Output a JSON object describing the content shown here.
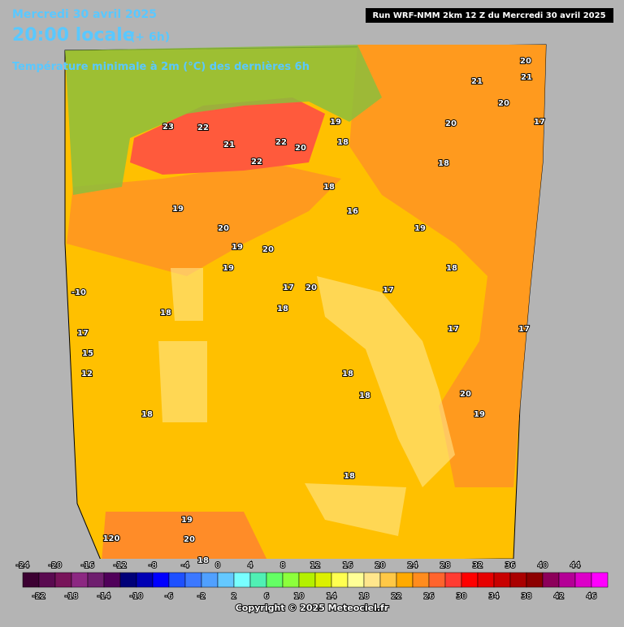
{
  "header": {
    "date": "Mercredi 30 avril 2025",
    "time": "20:00 locale",
    "lead": "(+ 6h)",
    "subtitle": "Température minimale à 2m (°C) des dernières 6h",
    "run": "Run WRF-NMM 2km 12 Z du Mercredi 30 avril 2025"
  },
  "map_labels": [
    23,
    22,
    22,
    22,
    21,
    20,
    19,
    18,
    18,
    16,
    19,
    20,
    19,
    20,
    19,
    17,
    20,
    18,
    17,
    18,
    17,
    15,
    12,
    18,
    18,
    18,
    19,
    20,
    18,
    17,
    17,
    18,
    19,
    18,
    20,
    20,
    21,
    20,
    21,
    17,
    -10,
    19,
    20,
    18,
    120
  ],
  "scale": {
    "top_labels": [
      -24,
      -20,
      -16,
      -12,
      -8,
      -4,
      0,
      4,
      8,
      12,
      16,
      20,
      24,
      28,
      32,
      36,
      40,
      44
    ],
    "bottom_labels": [
      -22,
      -18,
      -14,
      -10,
      -6,
      -2,
      2,
      6,
      10,
      14,
      18,
      22,
      26,
      30,
      34,
      38,
      42,
      46
    ],
    "colors": [
      "#3c0032",
      "#5a0a50",
      "#78145a",
      "#8c2882",
      "#6e1e6e",
      "#50005a",
      "#000078",
      "#0000b4",
      "#0000ff",
      "#1e50ff",
      "#3c78ff",
      "#50a0ff",
      "#64c8ff",
      "#78ffff",
      "#50f0b4",
      "#64ff64",
      "#8cff3c",
      "#b4f000",
      "#dcf000",
      "#ffff50",
      "#ffff96",
      "#ffe68c",
      "#ffc846",
      "#ffaa00",
      "#ff8c1e",
      "#ff642d",
      "#ff3c32",
      "#ff0000",
      "#e60000",
      "#c80000",
      "#aa0000",
      "#8c0000",
      "#8c005a",
      "#b40096",
      "#dc00c8",
      "#ff00ff"
    ]
  },
  "footer": {
    "copyright": "Copyright © 2025 Meteociel.fr"
  }
}
